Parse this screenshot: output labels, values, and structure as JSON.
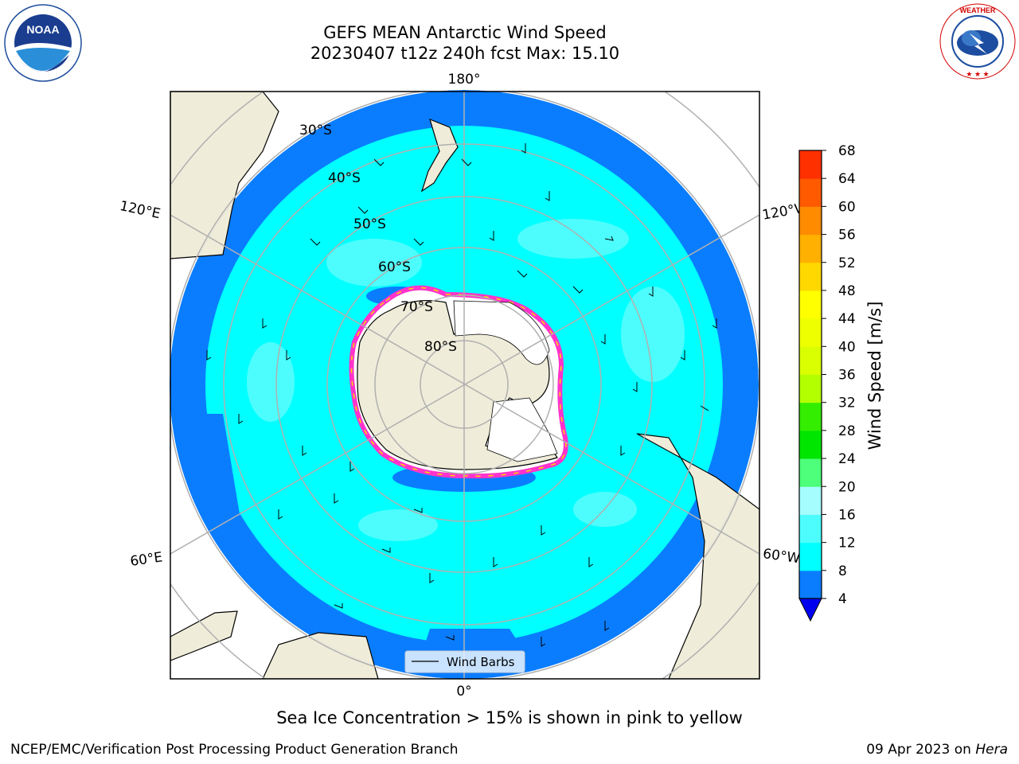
{
  "header": {
    "title_line1": "GEFS MEAN Antarctic Wind Speed",
    "title_line2": "20230407 t12z 240h fcst   Max: 15.10"
  },
  "logos": {
    "left": {
      "name": "NOAA",
      "ring_text": "NATIONAL OCEANIC AND ATMOSPHERIC ADMINISTRATION",
      "ring_text_bottom": "U.S. DEPARTMENT OF COMMERCE"
    },
    "right": {
      "name": "NATIONAL WEATHER SERVICE"
    }
  },
  "map": {
    "projection": "south-polar-stereographic",
    "lat_labels": [
      "30°S",
      "40°S",
      "50°S",
      "60°S",
      "70°S",
      "80°S"
    ],
    "lon_labels": {
      "top": "180°",
      "bottom": "0°",
      "upper_left": "120°E",
      "lower_left": "60°E",
      "upper_right": "120°W",
      "lower_right": "60°W"
    },
    "legend_label": "Wind Barbs"
  },
  "colorbar": {
    "label": "Wind Speed [m/s]",
    "ticks": [
      "4",
      "8",
      "12",
      "16",
      "20",
      "24",
      "28",
      "32",
      "36",
      "40",
      "44",
      "48",
      "52",
      "56",
      "60",
      "64",
      "68"
    ],
    "colors": [
      "#0a7dff",
      "#00ffff",
      "#4dfdfd",
      "#a6fdfd",
      "#4dff7a",
      "#00e600",
      "#33ee00",
      "#b3ff00",
      "#d9ff00",
      "#eeff00",
      "#ffff00",
      "#ffd800",
      "#ffb000",
      "#ff8c00",
      "#ff5a00",
      "#ff3000"
    ],
    "under_color": "#0000ee"
  },
  "chart_data": {
    "type": "heatmap",
    "variable": "Wind Speed [m/s]",
    "vmin": 4,
    "vmax": 68,
    "max_value": 15.1,
    "forecast_hour": 240,
    "cycle": "20230407 t12z"
  },
  "footer": {
    "caption": "Sea Ice Concentration > 15% is shown in pink to yellow",
    "credit_left": "NCEP/EMC/Verification Post Processing Product Generation Branch",
    "credit_date": "09 Apr 2023 on ",
    "credit_host": "Hera"
  }
}
